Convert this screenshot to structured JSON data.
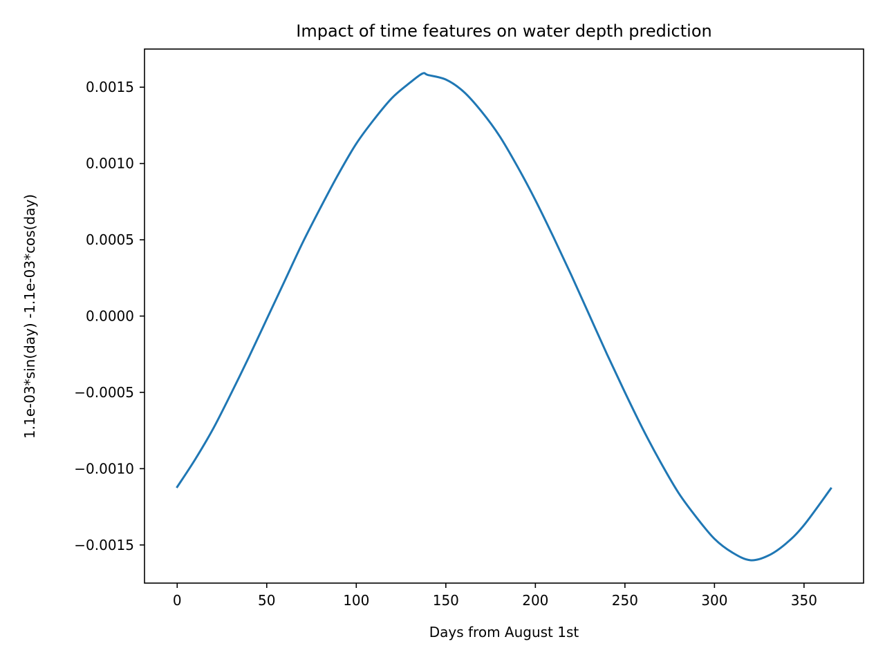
{
  "chart_data": {
    "type": "line",
    "title": "Impact of time features on water depth prediction",
    "xlabel": "Days from August 1st",
    "ylabel": "1.1e-03*sin(day) -1.1e-03*cos(day)",
    "xlim": [
      -18.25,
      383.25
    ],
    "ylim": [
      -0.00175,
      0.00175
    ],
    "x_ticks": [
      0,
      50,
      100,
      150,
      200,
      250,
      300,
      350
    ],
    "x_tick_labels": [
      "0",
      "50",
      "100",
      "150",
      "200",
      "250",
      "300",
      "350"
    ],
    "y_ticks": [
      0.0015,
      0.001,
      0.0005,
      0.0,
      -0.0005,
      -0.001,
      -0.0015
    ],
    "y_tick_labels": [
      "0.0015",
      "0.0010",
      "0.0005",
      "0.0000",
      "−0.0005",
      "−0.0010",
      "−0.0015"
    ],
    "grid": false,
    "series": [
      {
        "color": "#1f77b4",
        "x": [
          0,
          10,
          20,
          30,
          40,
          50,
          60,
          70,
          80,
          90,
          100,
          110,
          120,
          130,
          137,
          140,
          150,
          160,
          170,
          180,
          190,
          200,
          210,
          220,
          230,
          240,
          250,
          260,
          270,
          280,
          290,
          300,
          310,
          320,
          330,
          340,
          350,
          365
        ],
        "y": [
          -0.00112,
          -0.00094,
          -0.00074,
          -0.00051,
          -0.00027,
          -2e-05,
          0.00023,
          0.00048,
          0.00071,
          0.00093,
          0.00113,
          0.00129,
          0.00143,
          0.00153,
          0.00159,
          0.00158,
          0.00155,
          0.00147,
          0.00134,
          0.00118,
          0.00098,
          0.00076,
          0.00052,
          0.00027,
          1e-05,
          -0.00025,
          -0.0005,
          -0.00074,
          -0.00096,
          -0.00116,
          -0.00132,
          -0.00146,
          -0.00155,
          -0.0016,
          -0.00157,
          -0.00149,
          -0.00137,
          -0.00113
        ]
      }
    ]
  }
}
